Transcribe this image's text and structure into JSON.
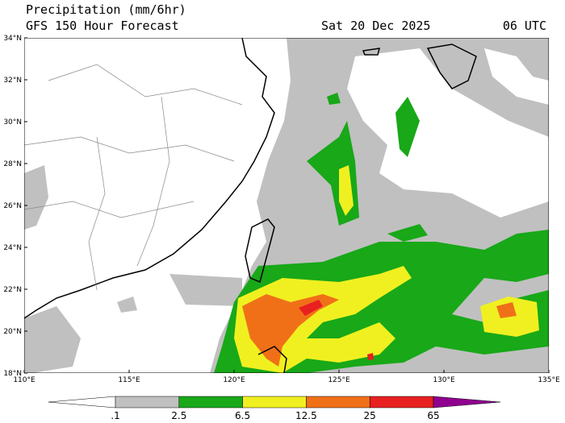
{
  "header": {
    "title": "Precipitation (mm/6hr)",
    "subtitle": "GFS 150 Hour Forecast",
    "date": "Sat 20 Dec 2025",
    "time": "06 UTC"
  },
  "map": {
    "lat_labels": [
      "34°N",
      "32°N",
      "30°N",
      "28°N",
      "26°N",
      "24°N",
      "22°N",
      "20°N",
      "18°N"
    ],
    "lon_labels": [
      "110°E",
      "115°E",
      "120°E",
      "125°E",
      "130°E",
      "135°E"
    ]
  },
  "colorbar": {
    "labels": [
      ".1",
      "2.5",
      "6.5",
      "12.5",
      "25",
      "65"
    ],
    "colors": [
      "#ffffff",
      "#c0c0c0",
      "#18a818",
      "#f0f020",
      "#f07018",
      "#e82020",
      "#900090"
    ]
  }
}
